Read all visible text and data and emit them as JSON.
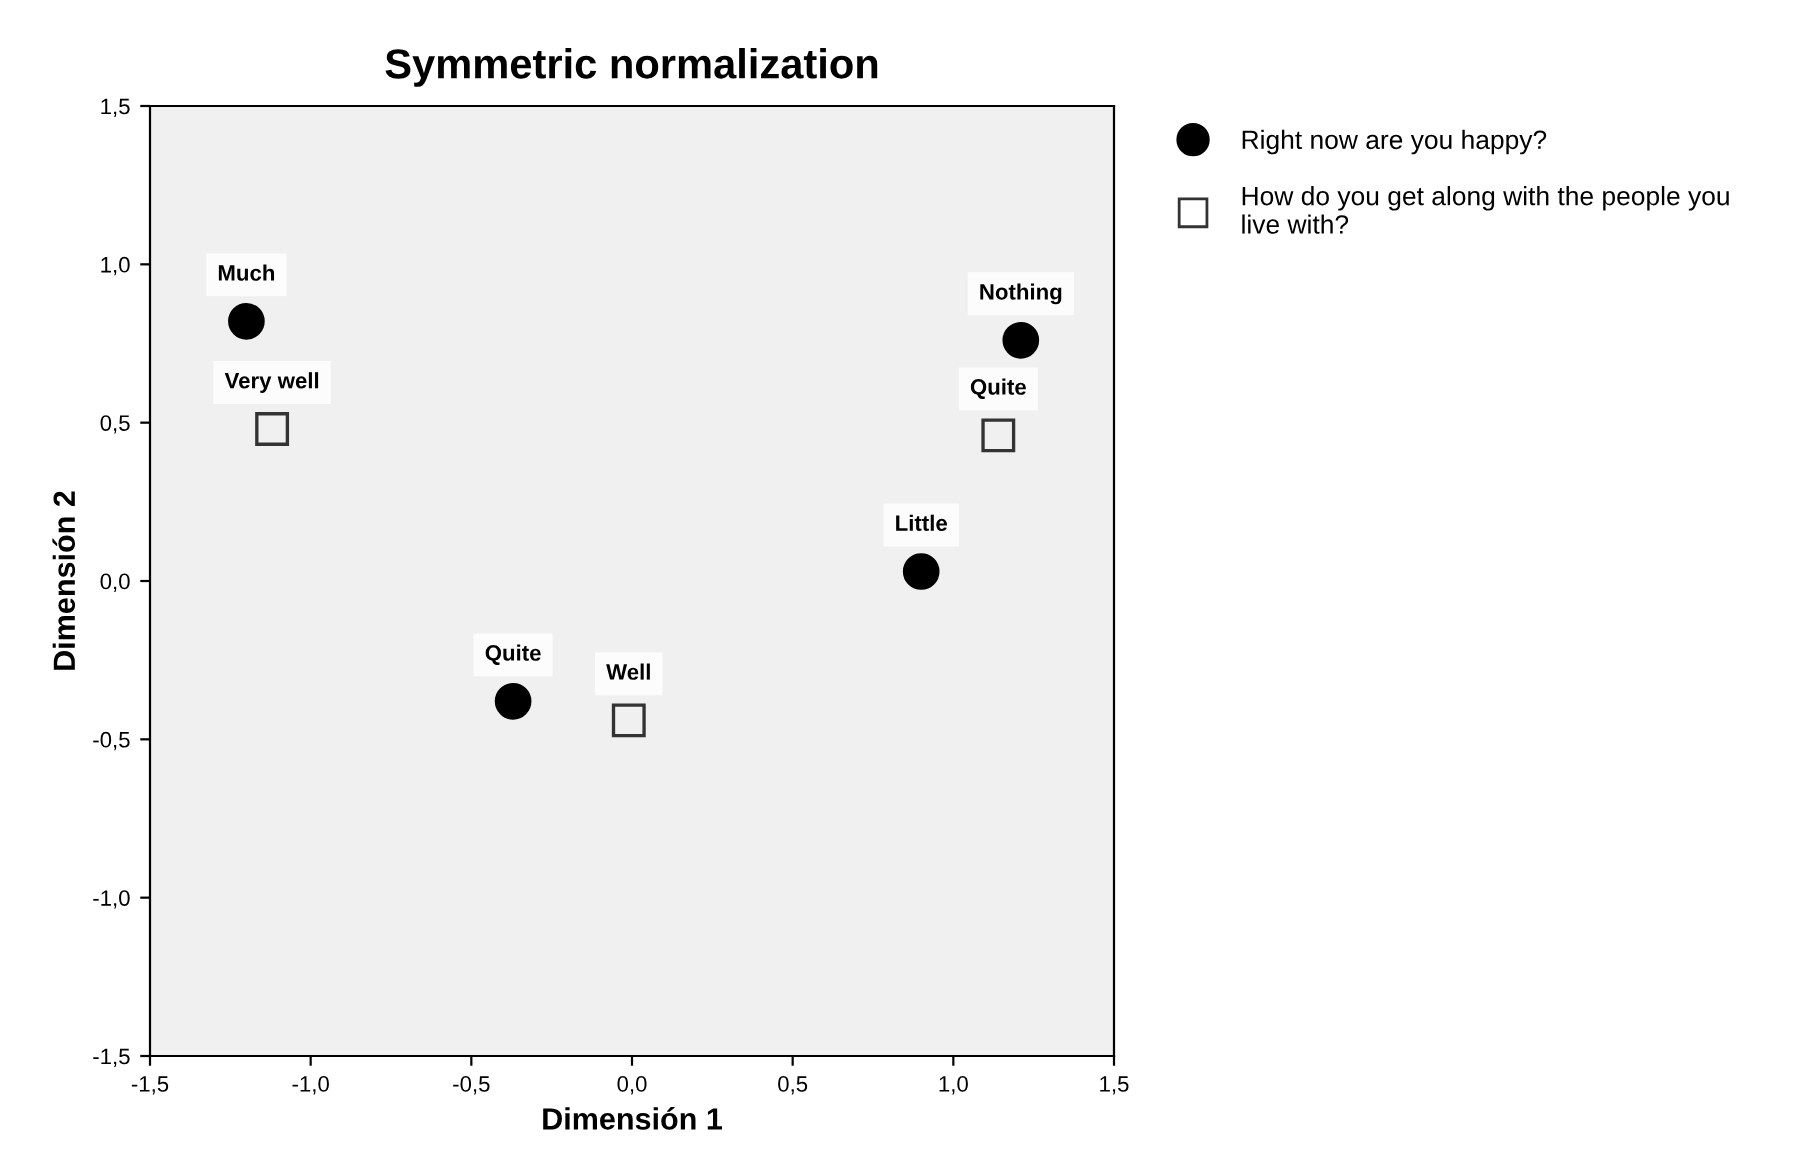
{
  "chart_data": {
    "type": "scatter",
    "title": "Symmetric normalization",
    "xlabel": "Dimensión 1",
    "ylabel": "Dimensión 2",
    "xlim": [
      -1.5,
      1.5
    ],
    "ylim": [
      -1.5,
      1.5
    ],
    "xticks": [
      {
        "value": -1.5,
        "label": "-1,5"
      },
      {
        "value": -1.0,
        "label": "-1,0"
      },
      {
        "value": -0.5,
        "label": "-0,5"
      },
      {
        "value": 0.0,
        "label": "0,0"
      },
      {
        "value": 0.5,
        "label": "0,5"
      },
      {
        "value": 1.0,
        "label": "1,0"
      },
      {
        "value": 1.5,
        "label": "1,5"
      }
    ],
    "yticks": [
      {
        "value": -1.5,
        "label": "-1,5"
      },
      {
        "value": -1.0,
        "label": "-1,0"
      },
      {
        "value": -0.5,
        "label": "-0,5"
      },
      {
        "value": 0.0,
        "label": "0,0"
      },
      {
        "value": 0.5,
        "label": "0,5"
      },
      {
        "value": 1.0,
        "label": "1,0"
      },
      {
        "value": 1.5,
        "label": "1,5"
      }
    ],
    "grid": false,
    "legend": "top right",
    "series": [
      {
        "name": "Right now are you happy?",
        "color": "#000000",
        "marker": "circle",
        "x": [
          -1.2,
          1.21,
          0.9,
          -0.37
        ],
        "values": [
          0.82,
          0.76,
          0.03,
          -0.38
        ]
      },
      {
        "name": "How do you get along with the people you live with?",
        "color": "#333333",
        "marker": "square",
        "x": [
          -1.12,
          1.14,
          -0.01
        ],
        "values": [
          0.48,
          0.46,
          -0.44
        ]
      }
    ],
    "annotations": [
      {
        "text": "Much",
        "x": -1.2,
        "y": 0.82
      },
      {
        "text": "Nothing",
        "x": 1.21,
        "y": 0.76
      },
      {
        "text": "Little",
        "x": 0.9,
        "y": 0.03
      },
      {
        "text": "Quite",
        "x": -0.37,
        "y": -0.38
      },
      {
        "text": "Very well",
        "x": -1.12,
        "y": 0.48
      },
      {
        "text": "Quite",
        "x": 1.14,
        "y": 0.46
      },
      {
        "text": "Well",
        "x": -0.01,
        "y": -0.44
      }
    ]
  }
}
